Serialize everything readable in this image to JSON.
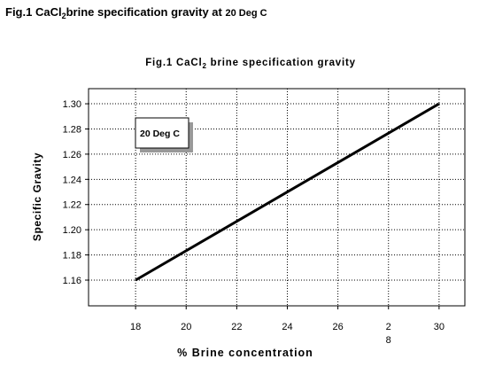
{
  "heading": [
    "Fig.1 CaCl",
    "2",
    "brine specification gravity at ",
    "20 Deg C"
  ],
  "chart_data": {
    "type": "line",
    "title": [
      "Fig.1  CaCl",
      "2",
      " brine specification gravity"
    ],
    "x_label": "% Brine concentration",
    "y_label": "Specific Gravity",
    "annotation": "20  Deg C",
    "x": [
      18,
      30
    ],
    "series": [
      {
        "color": "#000000",
        "values": [
          1.16,
          1.3
        ]
      }
    ],
    "xlim": [
      16.14,
      31.02
    ],
    "ylim": [
      1.1396,
      1.312
    ],
    "xticks": [
      18,
      20,
      22,
      24,
      26,
      {
        "value": 28,
        "label": "2\n8"
      },
      30
    ],
    "yticks": [
      1.16,
      1.18,
      {
        "value": 1.2,
        "label": "1.20"
      },
      1.22,
      1.24,
      1.26,
      1.28,
      {
        "value": 1.3,
        "label": "1.30"
      }
    ],
    "grid": true
  }
}
